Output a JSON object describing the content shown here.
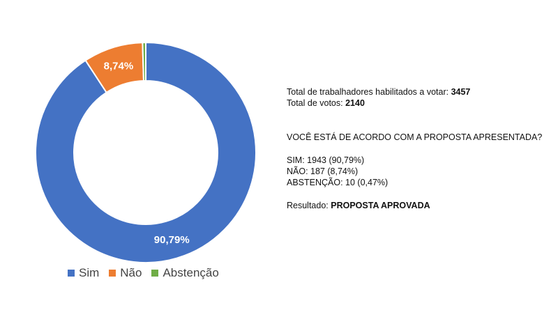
{
  "chart_data": {
    "type": "pie",
    "donut": true,
    "categories": [
      "Sim",
      "Não",
      "Abstenção"
    ],
    "values": [
      90.79,
      8.74,
      0.47
    ],
    "data_labels": [
      "90,79%",
      "8,74%",
      ""
    ],
    "colors": [
      "#4472C4",
      "#ED7D31",
      "#70AD47"
    ],
    "legend_placement": "bottom"
  },
  "info": {
    "eligible_label": "Total de trabalhadores habilitados a votar:",
    "eligible_value": "3457",
    "votes_label": "Total de votos:",
    "votes_value": "2140",
    "question": "VOCÊ ESTÁ DE ACORDO COM A PROPOSTA APRESENTADA?",
    "yes_line": "SIM: 1943 (90,79%)",
    "no_line": "NÃO: 187 (8,74%)",
    "abstention_line": "ABSTENÇÃO: 10 (0,47%)",
    "result_label": "Resultado:",
    "result_value": "PROPOSTA APROVADA"
  }
}
